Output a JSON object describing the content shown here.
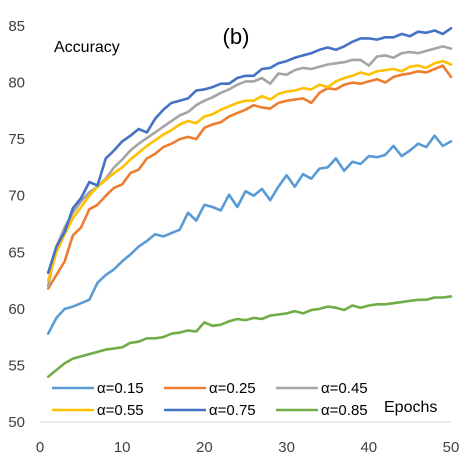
{
  "chart_data": {
    "type": "line",
    "title": "(b)",
    "xlabel": "Epochs",
    "ylabel": "Accuracy",
    "xlim": [
      0,
      50
    ],
    "ylim": [
      50,
      85
    ],
    "xticks": [
      "0",
      "10",
      "20",
      "30",
      "40",
      "50"
    ],
    "yticks": [
      "50",
      "55",
      "60",
      "65",
      "70",
      "75",
      "80",
      "85"
    ],
    "grid": false,
    "legend_position": "bottom",
    "x": [
      1,
      2,
      3,
      4,
      5,
      6,
      7,
      8,
      9,
      10,
      11,
      12,
      13,
      14,
      15,
      16,
      17,
      18,
      19,
      20,
      21,
      22,
      23,
      24,
      25,
      26,
      27,
      28,
      29,
      30,
      31,
      32,
      33,
      34,
      35,
      36,
      37,
      38,
      39,
      40,
      41,
      42,
      43,
      44,
      45,
      46,
      47,
      48,
      49,
      50
    ],
    "series": [
      {
        "name": "α=0.15",
        "color": "#5B9BD5",
        "values": [
          57.8,
          59.2,
          60.0,
          60.2,
          60.5,
          60.8,
          62.3,
          63.0,
          63.5,
          64.2,
          64.8,
          65.5,
          66.0,
          66.6,
          66.4,
          66.7,
          67.0,
          68.5,
          67.8,
          69.2,
          69.0,
          68.7,
          70.1,
          69.0,
          70.4,
          70.0,
          70.6,
          69.6,
          70.8,
          71.8,
          70.8,
          71.9,
          71.5,
          72.4,
          72.5,
          73.3,
          72.2,
          73.0,
          72.8,
          73.5,
          73.4,
          73.6,
          74.4,
          73.5,
          74.0,
          74.6,
          74.3,
          75.3,
          74.4,
          74.8
        ]
      },
      {
        "name": "α=0.25",
        "color": "#ED7D31",
        "values": [
          61.8,
          63.0,
          64.2,
          66.5,
          67.2,
          68.8,
          69.2,
          70.0,
          70.7,
          71.0,
          72.0,
          72.3,
          73.3,
          73.7,
          74.3,
          74.6,
          75.0,
          75.2,
          75.0,
          76.0,
          76.3,
          76.5,
          77.0,
          77.3,
          77.6,
          78.0,
          77.8,
          77.7,
          78.2,
          78.4,
          78.5,
          78.6,
          78.2,
          79.1,
          79.5,
          79.4,
          79.8,
          80.0,
          79.9,
          80.1,
          80.3,
          80.0,
          80.5,
          80.7,
          80.8,
          81.0,
          80.9,
          81.2,
          81.5,
          80.5
        ]
      },
      {
        "name": "α=0.45",
        "color": "#A5A5A5",
        "values": [
          62.0,
          65.5,
          67.2,
          68.5,
          69.5,
          70.3,
          70.8,
          71.5,
          72.5,
          73.2,
          74.0,
          74.6,
          75.1,
          75.6,
          76.1,
          76.6,
          77.1,
          77.4,
          78.0,
          78.4,
          78.7,
          79.1,
          79.4,
          79.8,
          80.1,
          80.1,
          80.4,
          79.9,
          80.8,
          80.7,
          81.1,
          81.3,
          81.2,
          81.4,
          81.6,
          81.7,
          81.8,
          82.0,
          82.0,
          81.5,
          82.3,
          82.4,
          82.2,
          82.6,
          82.7,
          82.6,
          82.8,
          83.0,
          83.2,
          83.0
        ]
      },
      {
        "name": "α=0.55",
        "color": "#FFC000",
        "values": [
          62.5,
          65.0,
          66.6,
          68.0,
          69.0,
          70.0,
          70.8,
          71.4,
          72.0,
          72.5,
          73.2,
          73.8,
          74.4,
          74.9,
          75.4,
          75.8,
          76.3,
          76.6,
          76.4,
          77.0,
          77.2,
          77.6,
          77.9,
          78.2,
          78.4,
          78.4,
          78.8,
          78.5,
          79.0,
          79.2,
          79.3,
          79.5,
          79.4,
          79.8,
          79.6,
          80.1,
          80.4,
          80.6,
          80.9,
          80.7,
          81.0,
          81.1,
          81.2,
          81.0,
          81.4,
          81.5,
          81.3,
          81.7,
          81.9,
          81.6
        ]
      },
      {
        "name": "α=0.75",
        "color": "#4472C4",
        "values": [
          63.2,
          65.5,
          66.8,
          68.9,
          69.8,
          71.2,
          70.9,
          73.3,
          74.0,
          74.8,
          75.3,
          75.9,
          75.6,
          76.8,
          77.6,
          78.2,
          78.4,
          78.6,
          79.3,
          79.4,
          79.6,
          79.9,
          79.9,
          80.4,
          80.6,
          80.6,
          81.2,
          81.3,
          81.7,
          81.9,
          82.2,
          82.4,
          82.6,
          82.9,
          83.1,
          82.9,
          83.2,
          83.6,
          83.9,
          83.9,
          83.8,
          84.0,
          84.0,
          84.3,
          84.1,
          84.5,
          84.4,
          84.6,
          84.3,
          84.8
        ]
      },
      {
        "name": "α=0.85",
        "color": "#70AD47",
        "values": [
          54.0,
          54.6,
          55.2,
          55.6,
          55.8,
          56.0,
          56.2,
          56.4,
          56.5,
          56.6,
          57.0,
          57.1,
          57.4,
          57.4,
          57.5,
          57.8,
          57.9,
          58.1,
          58.0,
          58.8,
          58.5,
          58.6,
          58.9,
          59.1,
          59.0,
          59.2,
          59.1,
          59.4,
          59.5,
          59.6,
          59.8,
          59.6,
          59.9,
          60.0,
          60.2,
          60.1,
          59.9,
          60.3,
          60.1,
          60.3,
          60.4,
          60.4,
          60.5,
          60.6,
          60.7,
          60.8,
          60.8,
          61.0,
          61.0,
          61.1
        ]
      }
    ]
  }
}
